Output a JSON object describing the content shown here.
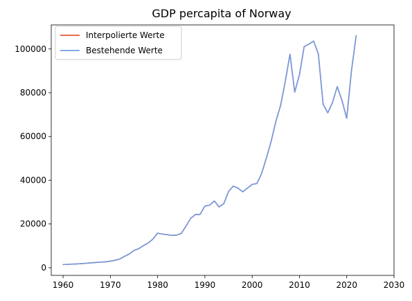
{
  "chart_data": {
    "type": "line",
    "title": "GDP percapita of Norway",
    "xlabel": "",
    "ylabel": "",
    "xlim": [
      1957.5,
      2030
    ],
    "ylim": [
      -3500,
      111000
    ],
    "x_ticks": [
      1960,
      1970,
      1980,
      1990,
      2000,
      2010,
      2020,
      2030
    ],
    "y_ticks": [
      0,
      20000,
      40000,
      60000,
      80000,
      100000
    ],
    "grid": false,
    "legend_position": "top-left",
    "series": [
      {
        "name": "Interpolierte Werte",
        "color": "#e4572e",
        "x": [
          1960,
          1961,
          1962,
          1963,
          1964,
          1965,
          1966,
          1967,
          1968,
          1969,
          1970,
          1971,
          1972,
          1973,
          1974,
          1975,
          1976,
          1977,
          1978,
          1979,
          1980,
          1981,
          1982,
          1983,
          1984,
          1985,
          1986,
          1987,
          1988,
          1989,
          1990,
          1991,
          1992,
          1993,
          1994,
          1995,
          1996,
          1997,
          1998,
          1999,
          2000,
          2001,
          2002,
          2003,
          2004,
          2005,
          2006,
          2007,
          2008,
          2009,
          2010,
          2011,
          2012,
          2013,
          2014,
          2015,
          2016,
          2017,
          2018,
          2019,
          2020,
          2021,
          2022
        ],
        "values": [
          1440,
          1560,
          1670,
          1760,
          1900,
          2080,
          2250,
          2400,
          2560,
          2740,
          3000,
          3400,
          4000,
          5200,
          6300,
          7900,
          8700,
          10100,
          11300,
          13100,
          15800,
          15400,
          15100,
          14800,
          14900,
          15700,
          19000,
          22600,
          24300,
          24400,
          28200,
          28600,
          30500,
          27800,
          29300,
          34800,
          37300,
          36400,
          34700,
          36400,
          38100,
          38500,
          43100,
          50100,
          57600,
          66800,
          74100,
          85100,
          97600,
          80300,
          88200,
          101100,
          102200,
          103600,
          97700,
          74800,
          70800,
          75600,
          82800,
          76400,
          68300,
          90000,
          106100
        ]
      },
      {
        "name": "Bestehende Werte",
        "color": "#6f9be3",
        "x": [
          1960,
          1961,
          1962,
          1963,
          1964,
          1965,
          1966,
          1967,
          1968,
          1969,
          1970,
          1971,
          1972,
          1973,
          1974,
          1975,
          1976,
          1977,
          1978,
          1979,
          1980,
          1981,
          1982,
          1983,
          1984,
          1985,
          1986,
          1987,
          1988,
          1989,
          1990,
          1991,
          1992,
          1993,
          1994,
          1995,
          1996,
          1997,
          1998,
          1999,
          2000,
          2001,
          2002,
          2003,
          2004,
          2005,
          2006,
          2007,
          2008,
          2009,
          2010,
          2011,
          2012,
          2013,
          2014,
          2015,
          2016,
          2017,
          2018,
          2019,
          2020,
          2021,
          2022
        ],
        "values": [
          1440,
          1560,
          1670,
          1760,
          1900,
          2080,
          2250,
          2400,
          2560,
          2740,
          3000,
          3400,
          4000,
          5200,
          6300,
          7900,
          8700,
          10100,
          11300,
          13100,
          15800,
          15400,
          15100,
          14800,
          14900,
          15700,
          19000,
          22600,
          24300,
          24400,
          28200,
          28600,
          30500,
          27800,
          29300,
          34800,
          37300,
          36400,
          34700,
          36400,
          38100,
          38500,
          43100,
          50100,
          57600,
          66800,
          74100,
          85100,
          97600,
          80300,
          88200,
          101100,
          102200,
          103600,
          97700,
          74800,
          70800,
          75600,
          82800,
          76400,
          68300,
          90000,
          106100
        ]
      }
    ]
  }
}
